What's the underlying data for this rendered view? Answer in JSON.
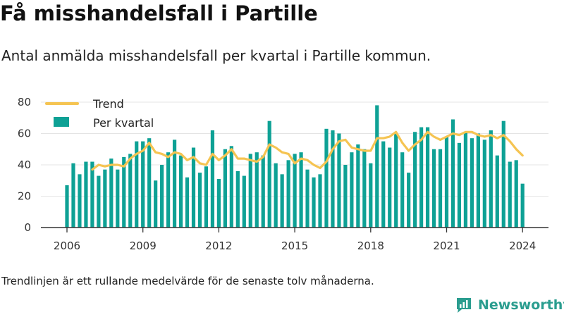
{
  "header": {
    "title": "Få misshandelsfall i Partille",
    "subtitle": "Antal anmälda misshandelsfall per kvartal i Partille kommun."
  },
  "footer": {
    "note": "Trendlinjen är ett rullande medelvärde för de senaste tolv månaderna.",
    "brand": "Newsworthy",
    "brand_icon": "newsworthy-logo-icon"
  },
  "colors": {
    "bars": "#0ea195",
    "trend": "#f5c452",
    "axis": "#333333",
    "grid": "#e4e4e4",
    "brand": "#2a9d8f"
  },
  "chart_data": {
    "type": "bar",
    "xlabel": "",
    "ylabel": "",
    "ylim": [
      0,
      80
    ],
    "yticks": [
      0,
      20,
      40,
      60,
      80
    ],
    "xticks": [
      2006,
      2009,
      2012,
      2015,
      2018,
      2021,
      2024
    ],
    "grid": true,
    "legend": {
      "position": "top-left",
      "entries": [
        "Trend",
        "Per kvartal"
      ]
    },
    "x": [
      "2006 Q1",
      "2006 Q2",
      "2006 Q3",
      "2006 Q4",
      "2007 Q1",
      "2007 Q2",
      "2007 Q3",
      "2007 Q4",
      "2008 Q1",
      "2008 Q2",
      "2008 Q3",
      "2008 Q4",
      "2009 Q1",
      "2009 Q2",
      "2009 Q3",
      "2009 Q4",
      "2010 Q1",
      "2010 Q2",
      "2010 Q3",
      "2010 Q4",
      "2011 Q1",
      "2011 Q2",
      "2011 Q3",
      "2011 Q4",
      "2012 Q1",
      "2012 Q2",
      "2012 Q3",
      "2012 Q4",
      "2013 Q1",
      "2013 Q2",
      "2013 Q3",
      "2013 Q4",
      "2014 Q1",
      "2014 Q2",
      "2014 Q3",
      "2014 Q4",
      "2015 Q1",
      "2015 Q2",
      "2015 Q3",
      "2015 Q4",
      "2016 Q1",
      "2016 Q2",
      "2016 Q3",
      "2016 Q4",
      "2017 Q1",
      "2017 Q2",
      "2017 Q3",
      "2017 Q4",
      "2018 Q1",
      "2018 Q2",
      "2018 Q3",
      "2018 Q4",
      "2019 Q1",
      "2019 Q2",
      "2019 Q3",
      "2019 Q4",
      "2020 Q1",
      "2020 Q2",
      "2020 Q3",
      "2020 Q4",
      "2021 Q1",
      "2021 Q2",
      "2021 Q3",
      "2021 Q4",
      "2022 Q1",
      "2022 Q2",
      "2022 Q3",
      "2022 Q4",
      "2023 Q1",
      "2023 Q2",
      "2023 Q3",
      "2023 Q4",
      "2024 Q1"
    ],
    "series": [
      {
        "name": "Per kvartal",
        "type": "bar",
        "values": [
          27,
          41,
          34,
          42,
          42,
          33,
          37,
          44,
          37,
          45,
          47,
          55,
          55,
          57,
          30,
          40,
          48,
          56,
          46,
          32,
          51,
          35,
          39,
          62,
          31,
          50,
          52,
          36,
          33,
          47,
          48,
          46,
          68,
          41,
          34,
          43,
          47,
          48,
          37,
          32,
          34,
          63,
          62,
          60,
          40,
          48,
          53,
          50,
          41,
          78,
          55,
          51,
          60,
          48,
          35,
          61,
          64,
          64,
          50,
          50,
          58,
          69,
          54,
          61,
          57,
          60,
          56,
          62,
          46,
          68,
          42,
          43,
          28
        ],
        "color": "#0ea195"
      },
      {
        "name": "Trend",
        "type": "line",
        "values": [
          null,
          null,
          null,
          null,
          37,
          40,
          39,
          40,
          40,
          39,
          44,
          47,
          49,
          54,
          48,
          47,
          45,
          48,
          47,
          43,
          45,
          41,
          40,
          47,
          43,
          46,
          50,
          44,
          44,
          43,
          42,
          45,
          53,
          51,
          48,
          47,
          41,
          44,
          43,
          40,
          38,
          42,
          50,
          55,
          56,
          51,
          50,
          49,
          49,
          57,
          57,
          58,
          61,
          54,
          49,
          53,
          56,
          61,
          58,
          56,
          58,
          60,
          59,
          61,
          61,
          59,
          58,
          59,
          57,
          59,
          55,
          50,
          46
        ],
        "color": "#f5c452"
      }
    ]
  }
}
